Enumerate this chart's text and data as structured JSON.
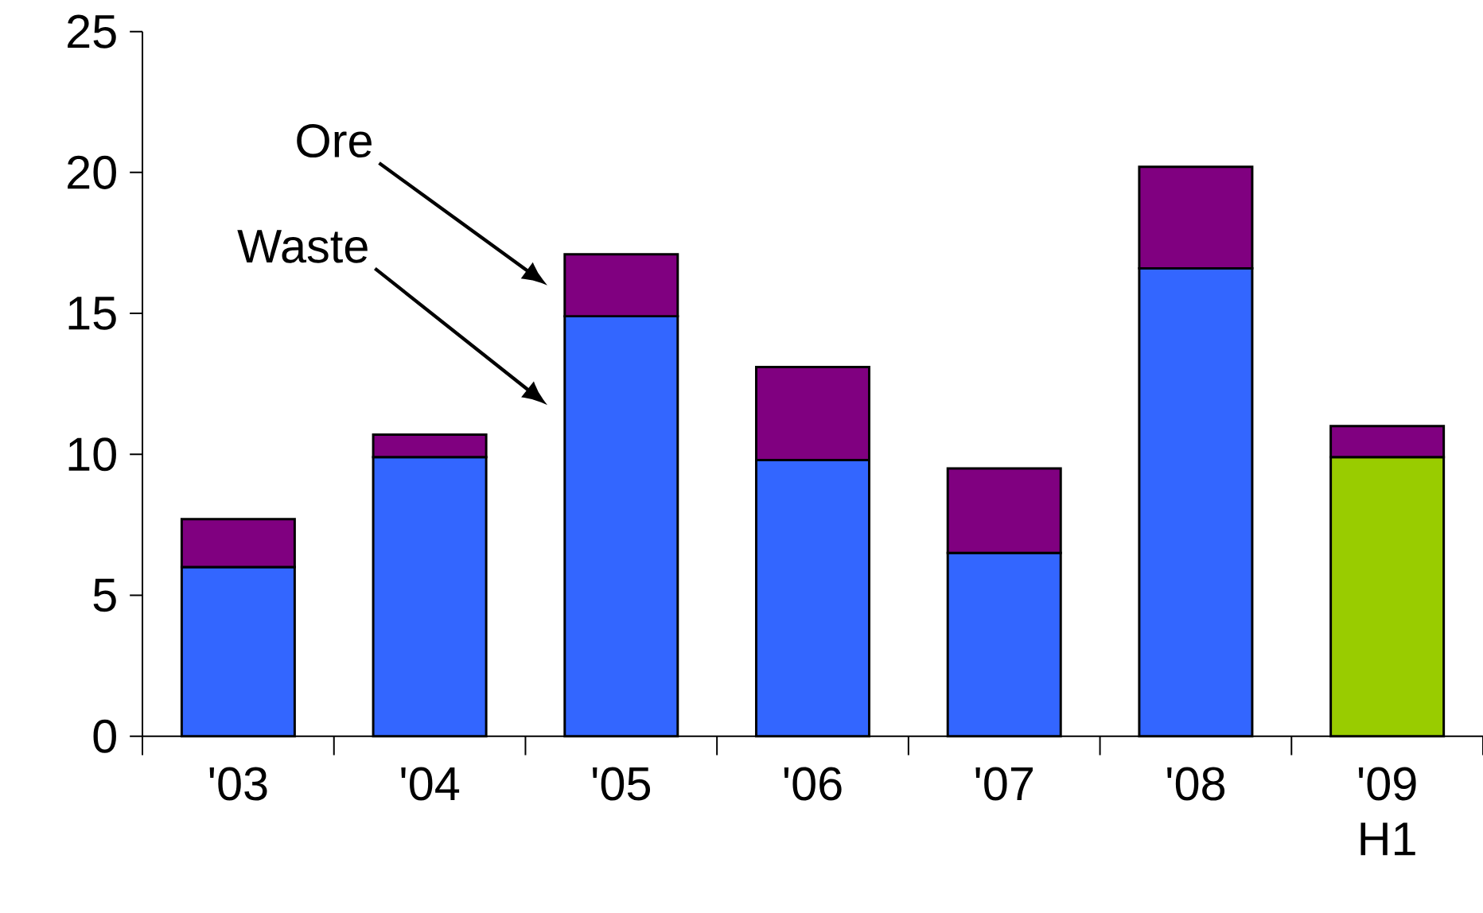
{
  "chart_data": {
    "type": "bar",
    "stacked": true,
    "categories": [
      "'03",
      "'04",
      "'05",
      "'06",
      "'07",
      "'08",
      "'09 H1"
    ],
    "series": [
      {
        "values": [
          6.0,
          9.9,
          14.9,
          9.8,
          6.5,
          16.6,
          9.9
        ],
        "colors": [
          "#3366ff",
          "#3366ff",
          "#3366ff",
          "#3366ff",
          "#3366ff",
          "#3366ff",
          "#99cc00"
        ]
      },
      {
        "values": [
          1.7,
          0.8,
          2.2,
          3.3,
          3.0,
          3.6,
          1.1
        ],
        "color": "#800080"
      }
    ],
    "ylim": [
      0,
      25
    ],
    "yticks": [
      0,
      5,
      10,
      15,
      20,
      25
    ],
    "annotations": [
      "Ore",
      "Waste"
    ]
  }
}
